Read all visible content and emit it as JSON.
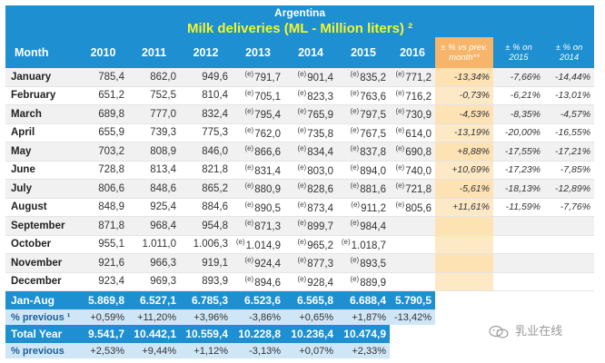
{
  "title": "Argentina",
  "subtitle": "Milk deliveries (ML - Million liters) ²",
  "headers": {
    "month": "Month",
    "years": [
      "2010",
      "2011",
      "2012",
      "2013",
      "2014",
      "2015",
      "2016"
    ],
    "pc_prev": "± % vs prev. month**",
    "pc_2015": "± % on 2015",
    "pc_2014": "± % on 2014"
  },
  "estimate_marker": "(e)",
  "months": [
    {
      "name": "January",
      "values": [
        "785,4",
        "862,0",
        "949,6",
        "791,7",
        "901,4",
        "835,2",
        "771,2"
      ],
      "est": [
        false,
        false,
        false,
        true,
        true,
        true,
        true
      ],
      "pc_prev": "-13,34%",
      "pc_2015": "-7,66%",
      "pc_2014": "-14,44%"
    },
    {
      "name": "February",
      "values": [
        "651,2",
        "752,5",
        "810,4",
        "705,1",
        "823,3",
        "763,6",
        "716,2"
      ],
      "est": [
        false,
        false,
        false,
        true,
        true,
        true,
        true
      ],
      "pc_prev": "-0,73%",
      "pc_2015": "-6,21%",
      "pc_2014": "-13,01%"
    },
    {
      "name": "March",
      "values": [
        "689,8",
        "777,0",
        "832,4",
        "795,4",
        "765,9",
        "797,5",
        "730,9"
      ],
      "est": [
        false,
        false,
        false,
        true,
        true,
        true,
        true
      ],
      "pc_prev": "-4,53%",
      "pc_2015": "-8,35%",
      "pc_2014": "-4,57%"
    },
    {
      "name": "April",
      "values": [
        "655,9",
        "739,3",
        "775,3",
        "762,0",
        "735,8",
        "767,5",
        "614,0"
      ],
      "est": [
        false,
        false,
        false,
        true,
        true,
        true,
        true
      ],
      "pc_prev": "-13,19%",
      "pc_2015": "-20,00%",
      "pc_2014": "-16,55%"
    },
    {
      "name": "May",
      "values": [
        "703,2",
        "808,9",
        "846,0",
        "866,6",
        "834,4",
        "837,8",
        "690,8"
      ],
      "est": [
        false,
        false,
        false,
        true,
        true,
        true,
        true
      ],
      "pc_prev": "+8,88%",
      "pc_2015": "-17,55%",
      "pc_2014": "-17,21%"
    },
    {
      "name": "June",
      "values": [
        "728,8",
        "813,4",
        "821,8",
        "831,4",
        "803,0",
        "894,0",
        "740,0"
      ],
      "est": [
        false,
        false,
        false,
        true,
        true,
        true,
        true
      ],
      "pc_prev": "+10,69%",
      "pc_2015": "-17,23%",
      "pc_2014": "-7,85%"
    },
    {
      "name": "July",
      "values": [
        "806,6",
        "848,6",
        "865,2",
        "880,9",
        "828,6",
        "881,6",
        "721,8"
      ],
      "est": [
        false,
        false,
        false,
        true,
        true,
        true,
        true
      ],
      "pc_prev": "-5,61%",
      "pc_2015": "-18,13%",
      "pc_2014": "-12,89%"
    },
    {
      "name": "August",
      "values": [
        "848,9",
        "925,4",
        "884,6",
        "890,5",
        "873,4",
        "911,2",
        "805,6"
      ],
      "est": [
        false,
        false,
        false,
        true,
        true,
        true,
        true
      ],
      "pc_prev": "+11,61%",
      "pc_2015": "-11,59%",
      "pc_2014": "-7,76%"
    },
    {
      "name": "September",
      "values": [
        "871,8",
        "968,4",
        "954,8",
        "871,3",
        "899,7",
        "984,4",
        ""
      ],
      "est": [
        false,
        false,
        false,
        true,
        true,
        true,
        false
      ],
      "pc_prev": "",
      "pc_2015": "",
      "pc_2014": ""
    },
    {
      "name": "October",
      "values": [
        "955,1",
        "1.011,0",
        "1.006,3",
        "1.014,9",
        "965,2",
        "1.018,7",
        ""
      ],
      "est": [
        false,
        false,
        false,
        true,
        true,
        true,
        false
      ],
      "pc_prev": "",
      "pc_2015": "",
      "pc_2014": ""
    },
    {
      "name": "November",
      "values": [
        "921,6",
        "966,3",
        "919,1",
        "924,4",
        "877,3",
        "893,5",
        ""
      ],
      "est": [
        false,
        false,
        false,
        true,
        true,
        true,
        false
      ],
      "pc_prev": "",
      "pc_2015": "",
      "pc_2014": ""
    },
    {
      "name": "December",
      "values": [
        "923,4",
        "969,3",
        "893,9",
        "894,6",
        "928,4",
        "889,9",
        ""
      ],
      "est": [
        false,
        false,
        false,
        true,
        true,
        true,
        false
      ],
      "pc_prev": "",
      "pc_2015": "",
      "pc_2014": ""
    }
  ],
  "jan_aug": {
    "label": "Jan-Aug",
    "values": [
      "5.869,8",
      "6.527,1",
      "6.785,3",
      "6.523,6",
      "6.565,8",
      "6.688,4",
      "5.790,5"
    ]
  },
  "jan_aug_pct": {
    "label": "% previous ¹",
    "values": [
      "+0,59%",
      "+11,20%",
      "+3,96%",
      "-3,86%",
      "+0,65%",
      "+1,87%",
      "-13,42%"
    ]
  },
  "total_year": {
    "label": "Total Year",
    "values": [
      "9.541,7",
      "10.442,1",
      "10.559,4",
      "10.228,8",
      "10.236,4",
      "10.474,9"
    ]
  },
  "total_pct": {
    "label": "% previous",
    "values": [
      "+2,53%",
      "+9,44%",
      "+1,12%",
      "-3,13%",
      "+0,07%",
      "+2,33%"
    ]
  },
  "watermark": "乳业在线",
  "colors": {
    "header": "#1e8fd0",
    "title_yellow": "#f2f531",
    "orange_col": "#f6b56a",
    "negative": "#e32b2b",
    "positive": "#2e9b1f"
  }
}
